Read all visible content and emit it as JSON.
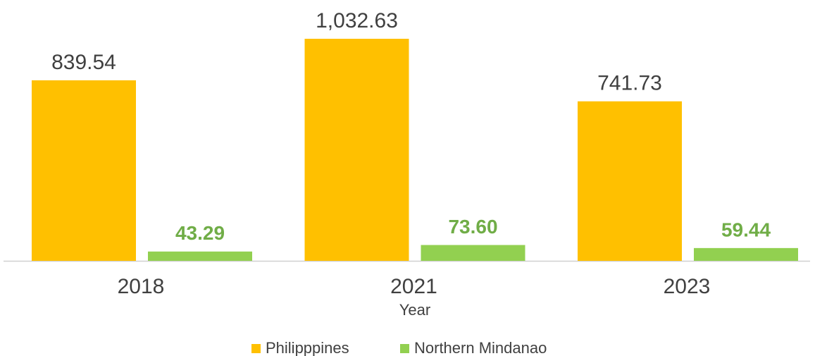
{
  "chart_data": {
    "type": "bar",
    "x_label": "Year",
    "categories": [
      "2018",
      "2021",
      "2023"
    ],
    "series": [
      {
        "name": "Philipppines",
        "color": "#FFC000",
        "values": [
          839.54,
          1032.63,
          741.73
        ],
        "value_labels": [
          "839.54",
          "1,032.63",
          "741.73"
        ]
      },
      {
        "name": "Northern Mindanao",
        "color": "#92D050",
        "values": [
          43.29,
          73.6,
          59.44
        ],
        "value_labels": [
          "43.29",
          "73.60",
          "59.44"
        ]
      }
    ],
    "legend": "bottom"
  }
}
